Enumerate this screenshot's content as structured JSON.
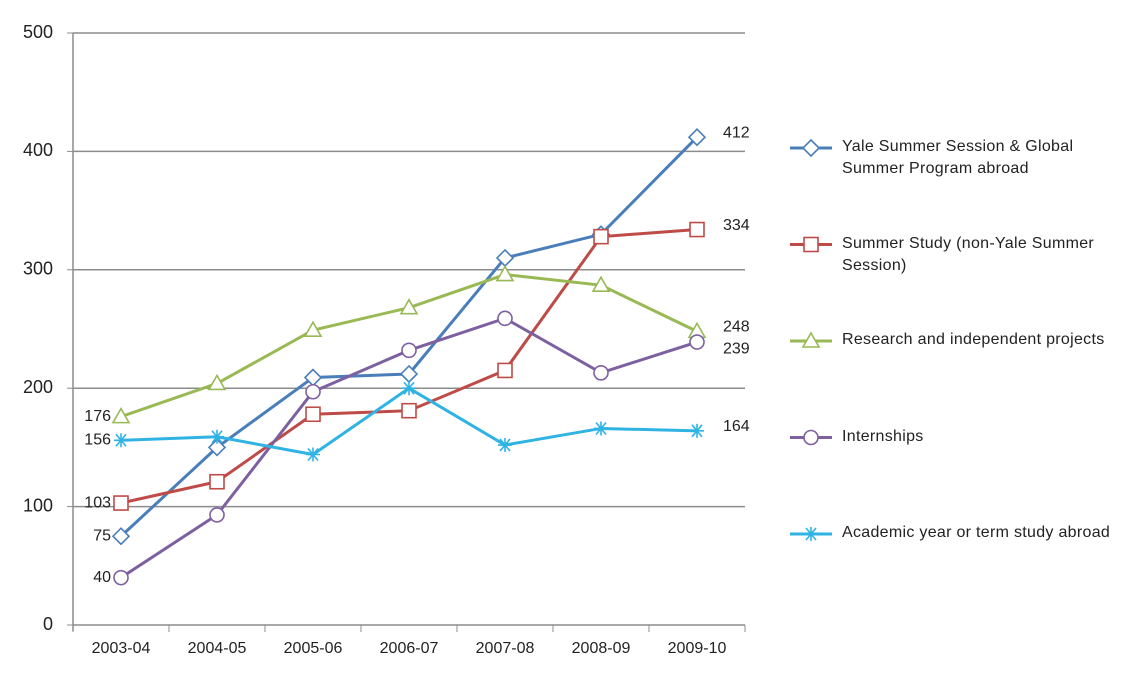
{
  "chart_data": {
    "type": "line",
    "categories": [
      "2003-04",
      "2004-05",
      "2005-06",
      "2006-07",
      "2007-08",
      "2008-09",
      "2009-10"
    ],
    "series": [
      {
        "name": "Yale Summer Session & Global Summer Program abroad",
        "color": "#4a7ebb",
        "marker": "diamond",
        "values": [
          75,
          150,
          209,
          212,
          310,
          330,
          412
        ]
      },
      {
        "name": "Summer Study (non-Yale Summer Session)",
        "color": "#be4b48",
        "marker": "square",
        "values": [
          103,
          121,
          178,
          181,
          215,
          328,
          334
        ]
      },
      {
        "name": "Research and independent projects",
        "color": "#98b954",
        "marker": "triangle",
        "values": [
          176,
          204,
          249,
          268,
          296,
          287,
          248
        ]
      },
      {
        "name": "Internships",
        "color": "#7d60a0",
        "marker": "circle",
        "values": [
          40,
          93,
          197,
          232,
          259,
          213,
          239
        ]
      },
      {
        "name": "Academic year or term study abroad",
        "color": "#2fb3e3",
        "marker": "star",
        "values": [
          156,
          159,
          144,
          200,
          152,
          166,
          164
        ]
      }
    ],
    "ylim": [
      0,
      500
    ],
    "yticks": [
      0,
      100,
      200,
      300,
      400,
      500
    ],
    "grid": true,
    "legend": "right"
  }
}
